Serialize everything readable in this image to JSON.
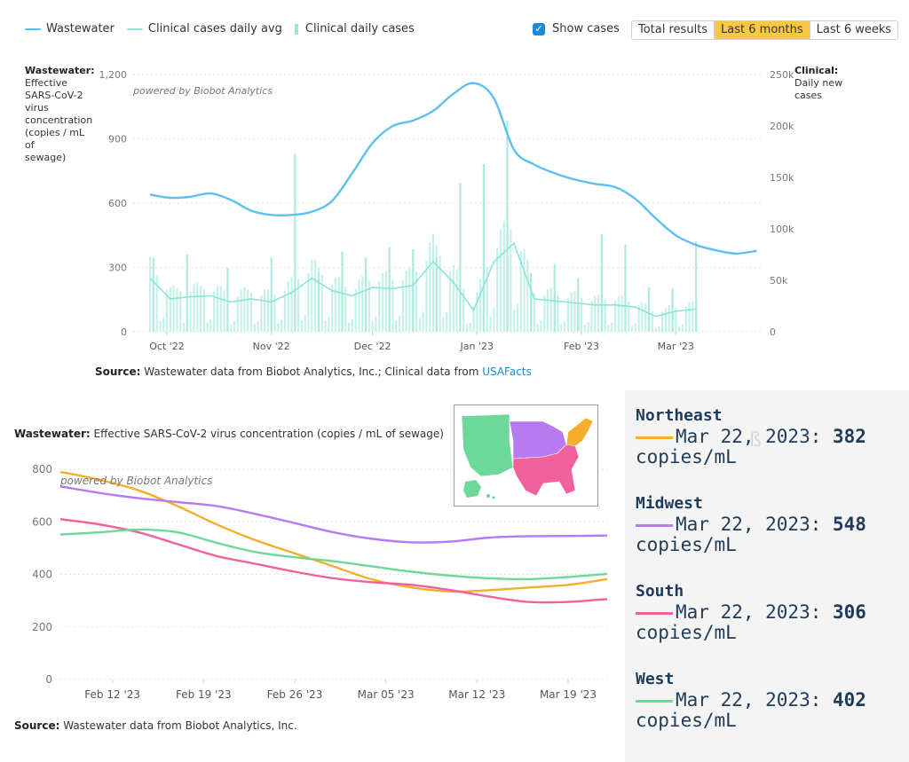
{
  "legend": {
    "wastewater": "Wastewater",
    "clinical_avg": "Clinical cases daily avg",
    "clinical_daily": "Clinical daily cases"
  },
  "controls": {
    "show_cases_label": "Show cases",
    "show_cases_checked": true,
    "ranges": [
      "Total results",
      "Last 6 months",
      "Last 6 weeks"
    ],
    "active_range": "Last 6 months"
  },
  "colors": {
    "wastewater": "#5bc0f0",
    "clinical": "#8fe3d6",
    "northeast": "#f5ae2a",
    "midwest": "#b87af0",
    "south": "#f0609a",
    "west": "#6ed89a",
    "active_button": "#f8c844",
    "link": "#1a8bd6",
    "region_text": "#1f3b59"
  },
  "top_chart": {
    "left_title_bold": "Wastewater:",
    "left_title_rest": [
      "Effective",
      "SARS-CoV-2",
      "virus",
      "concentration",
      "(copies / mL of",
      "sewage)"
    ],
    "right_title_bold": "Clinical:",
    "right_title_rest": [
      "Daily new",
      "cases"
    ],
    "watermark": "powered by Biobot Analytics",
    "source_bold": "Source:",
    "source_text": "Wastewater data from Biobot Analytics, Inc.; Clinical data from",
    "source_link": "USAFacts"
  },
  "bottom_chart": {
    "title_bold": "Wastewater:",
    "title_rest": "Effective SARS-CoV-2 virus concentration (copies / mL of sewage)",
    "watermark": "powered by Biobot Analytics",
    "source_bold": "Source:",
    "source_text": "Wastewater data from Biobot Analytics, Inc."
  },
  "regions": [
    {
      "name": "Northeast",
      "date": "Mar 22, 2023:",
      "value": "382",
      "unit": "copies/mL",
      "color": "#f5ae2a"
    },
    {
      "name": "Midwest",
      "date": "Mar 22, 2023:",
      "value": "548",
      "unit": "copies/mL",
      "color": "#b87af0"
    },
    {
      "name": "South",
      "date": "Mar 22, 2023:",
      "value": "306",
      "unit": "copies/mL",
      "color": "#f0609a"
    },
    {
      "name": "West",
      "date": "Mar 22, 2023:",
      "value": "402",
      "unit": "copies/mL",
      "color": "#6ed89a"
    }
  ],
  "chart_data": [
    {
      "type": "line",
      "x_ticks": [
        "Oct '22",
        "Nov '22",
        "Dec '22",
        "Jan '23",
        "Feb '23",
        "Mar '23"
      ],
      "y_left_ticks": [
        "0",
        "300",
        "600",
        "900",
        "1,200"
      ],
      "y_left_range": [
        0,
        1200
      ],
      "y_right_ticks": [
        "0",
        "50k",
        "100k",
        "150k",
        "200k",
        "250k"
      ],
      "y_right_range": [
        0,
        250000
      ],
      "series": [
        {
          "name": "Wastewater",
          "axis": "left",
          "x": [
            "2022-09-26",
            "2022-10-02",
            "2022-10-08",
            "2022-10-14",
            "2022-10-20",
            "2022-10-26",
            "2022-11-01",
            "2022-11-07",
            "2022-11-13",
            "2022-11-19",
            "2022-11-25",
            "2022-12-01",
            "2022-12-07",
            "2022-12-13",
            "2022-12-19",
            "2022-12-25",
            "2022-12-31",
            "2023-01-06",
            "2023-01-12",
            "2023-01-18",
            "2023-01-24",
            "2023-01-30",
            "2023-02-05",
            "2023-02-11",
            "2023-02-17",
            "2023-02-23",
            "2023-03-01",
            "2023-03-07",
            "2023-03-13",
            "2023-03-19",
            "2023-03-25"
          ],
          "values": [
            640,
            625,
            630,
            645,
            615,
            565,
            545,
            545,
            560,
            610,
            740,
            880,
            960,
            985,
            1030,
            1110,
            1160,
            1090,
            850,
            780,
            740,
            710,
            690,
            675,
            620,
            530,
            450,
            405,
            380,
            365,
            378
          ]
        },
        {
          "name": "Clinical cases daily avg",
          "axis": "right",
          "x": [
            "2022-09-26",
            "2022-10-02",
            "2022-10-08",
            "2022-10-14",
            "2022-10-20",
            "2022-10-26",
            "2022-11-01",
            "2022-11-07",
            "2022-11-13",
            "2022-11-19",
            "2022-11-25",
            "2022-12-01",
            "2022-12-07",
            "2022-12-13",
            "2022-12-19",
            "2022-12-25",
            "2022-12-31",
            "2023-01-06",
            "2023-01-12",
            "2023-01-18",
            "2023-01-24",
            "2023-01-30",
            "2023-02-05",
            "2023-02-11",
            "2023-02-17",
            "2023-02-23",
            "2023-03-01",
            "2023-03-07"
          ],
          "values": [
            52000,
            32000,
            34000,
            35000,
            29000,
            32000,
            29000,
            38000,
            52000,
            40000,
            35000,
            43000,
            42000,
            45000,
            68000,
            48000,
            21000,
            68000,
            86000,
            32000,
            30000,
            28000,
            26000,
            26000,
            24000,
            15000,
            20000,
            22000
          ]
        },
        {
          "name": "Clinical daily cases",
          "type": "bar",
          "axis": "right",
          "x": [
            "2022-09-27",
            "2022-10-07",
            "2022-10-19",
            "2022-11-01",
            "2022-11-08",
            "2022-11-15",
            "2022-11-22",
            "2022-11-29",
            "2022-12-06",
            "2022-12-13",
            "2022-12-20",
            "2022-12-27",
            "2023-01-03",
            "2023-01-10",
            "2023-01-17",
            "2023-01-24",
            "2023-01-31",
            "2023-02-07",
            "2023-02-14",
            "2023-02-21",
            "2023-02-28",
            "2023-03-07"
          ],
          "values": [
            72000,
            75000,
            62000,
            72000,
            173000,
            58000,
            78000,
            72000,
            82000,
            80000,
            72000,
            145000,
            163000,
            205000,
            57000,
            66000,
            52000,
            95000,
            85000,
            43000,
            42000,
            88000
          ]
        }
      ],
      "watermark": "powered by Biobot Analytics"
    },
    {
      "type": "line",
      "title": "Wastewater: Effective SARS-CoV-2 virus concentration (copies / mL of sewage)",
      "x_ticks": [
        "Feb 12 '23",
        "Feb 19 '23",
        "Feb 26 '23",
        "Mar 05 '23",
        "Mar 12 '23",
        "Mar 19 '23"
      ],
      "y_ticks": [
        "0",
        "200",
        "400",
        "600",
        "800"
      ],
      "ylim": [
        0,
        800
      ],
      "x": [
        "2023-02-08",
        "2023-02-11",
        "2023-02-14",
        "2023-02-17",
        "2023-02-20",
        "2023-02-23",
        "2023-02-26",
        "2023-03-01",
        "2023-03-04",
        "2023-03-07",
        "2023-03-10",
        "2023-03-13",
        "2023-03-16",
        "2023-03-19",
        "2023-03-22"
      ],
      "series": [
        {
          "name": "Northeast",
          "values": [
            790,
            760,
            720,
            660,
            590,
            530,
            480,
            430,
            380,
            350,
            335,
            340,
            350,
            360,
            382
          ]
        },
        {
          "name": "Midwest",
          "values": [
            735,
            710,
            690,
            675,
            660,
            630,
            595,
            560,
            535,
            522,
            525,
            540,
            545,
            546,
            548
          ]
        },
        {
          "name": "South",
          "values": [
            610,
            590,
            560,
            515,
            470,
            440,
            410,
            385,
            370,
            360,
            340,
            315,
            295,
            295,
            306
          ]
        },
        {
          "name": "West",
          "values": [
            552,
            560,
            570,
            560,
            520,
            485,
            465,
            450,
            430,
            410,
            395,
            385,
            382,
            390,
            402
          ]
        }
      ],
      "watermark": "powered by Biobot Analytics"
    }
  ]
}
